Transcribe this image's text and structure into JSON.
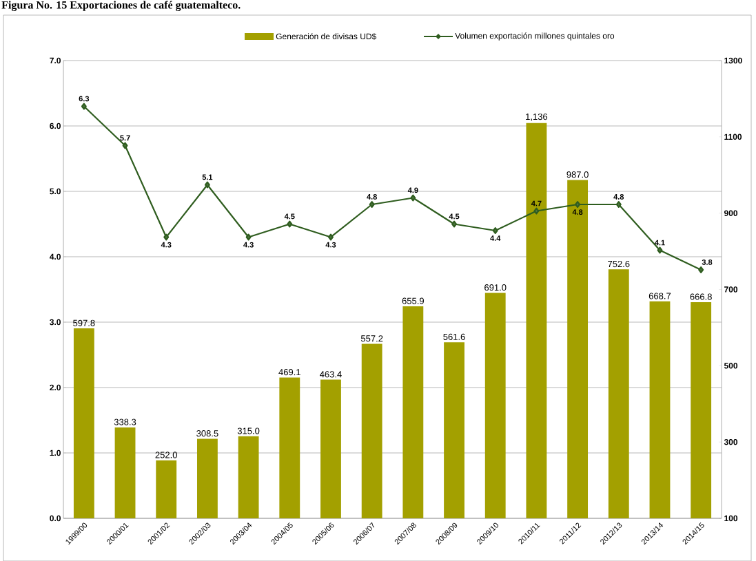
{
  "chart_data": {
    "type": "bar",
    "title": "Figura No. 15  Exportaciones de café guatemalteco.",
    "categories": [
      "1999/00",
      "2000/01",
      "2001/02",
      "2002/03",
      "2003/04",
      "2004/05",
      "2005/06",
      "2006/07",
      "2007/08",
      "2008/09",
      "2009/10",
      "2010/11",
      "2011/12",
      "2012/13",
      "2013/14",
      "2014/15"
    ],
    "series": [
      {
        "name": "Generación de divisas UD$",
        "axis": "y2",
        "color": "#a3a000",
        "values": [
          597.8,
          338.3,
          252.0,
          308.5,
          315.0,
          469.1,
          463.4,
          557.2,
          655.9,
          561.6,
          691.0,
          1136,
          987.0,
          752.6,
          668.7,
          666.8
        ],
        "value_labels": [
          "597.8",
          "338.3",
          "252.0",
          "308.5",
          "315.0",
          "469.1",
          "463.4",
          "557.2",
          "655.9",
          "561.6",
          "691.0",
          "1,136",
          "987.0",
          "752.6",
          "668.7",
          "666.8"
        ]
      },
      {
        "name": "Volumen exportación millones quintales oro",
        "type": "line",
        "axis": "y",
        "color": "#2f5d1f",
        "values": [
          6.3,
          5.7,
          4.3,
          5.1,
          4.3,
          4.5,
          4.3,
          4.8,
          4.9,
          4.5,
          4.4,
          4.7,
          4.8,
          4.8,
          4.1,
          3.8
        ],
        "value_labels": [
          "6.3",
          "5.7",
          "4.3",
          "5.1",
          "4.3",
          "4.5",
          "4.3",
          "4.8",
          "4.9",
          "4.5",
          "4.4",
          "4.7",
          "4.8",
          "4.8",
          "4.1",
          "3.8"
        ]
      }
    ],
    "ylim": [
      0,
      7
    ],
    "yticks": [
      {
        "value": 0,
        "label": "0.0"
      },
      {
        "value": 1,
        "label": "1.0"
      },
      {
        "value": 2,
        "label": "2.0"
      },
      {
        "value": 3,
        "label": "3.0"
      },
      {
        "value": 4,
        "label": "4.0"
      },
      {
        "value": 5,
        "label": "5.0"
      },
      {
        "value": 6,
        "label": "6.0"
      },
      {
        "value": 7,
        "label": "7.0"
      }
    ],
    "y2lim": [
      100,
      1300
    ],
    "y2ticks": [
      100,
      300,
      500,
      700,
      900,
      1100,
      1300
    ],
    "grid": "y",
    "legend": "top",
    "marker": "diamond"
  }
}
